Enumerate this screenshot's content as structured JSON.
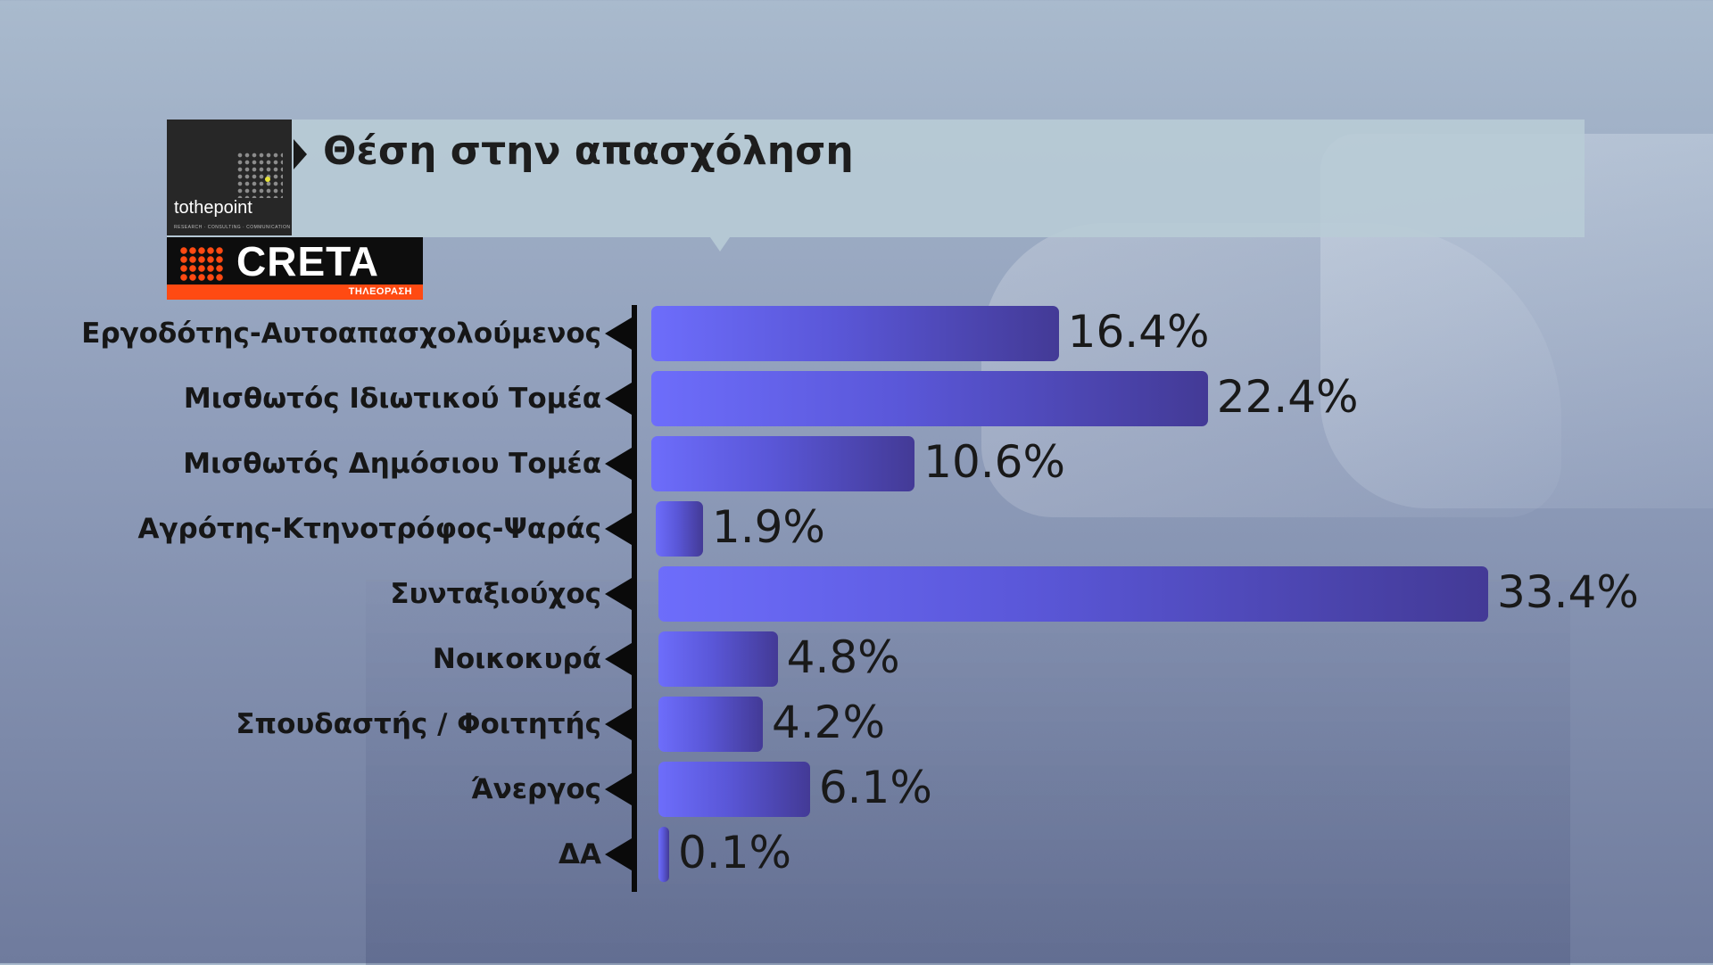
{
  "header": {
    "title": "Θέση στην απασχόληση"
  },
  "logos": {
    "tothepoint": {
      "name": "tothepoint",
      "tagline": "RESEARCH · CONSULTING · COMMUNICATION"
    },
    "creta": {
      "name": "CRETA",
      "subtitle": "ΤΗΛΕΟΡΑΣΗ"
    }
  },
  "colors": {
    "bar_start": "#6d6dfb",
    "bar_end": "#433a96",
    "header_bg": "#b8ccd6",
    "creta_orange": "#ff4a12"
  },
  "chart_data": {
    "type": "bar",
    "orientation": "horizontal",
    "title": "Θέση στην απασχόληση",
    "unit": "%",
    "categories": [
      "Εργοδότης-Αυτοαπασχολούμενος",
      "Μισθωτός Ιδιωτικού Τομέα",
      "Μισθωτός Δημόσιου Τομέα",
      "Αγρότης-Κτηνοτρόφος-Ψαράς",
      "Συνταξιούχος",
      "Νοικοκυρά",
      "Σπουδαστής / Φοιτητής",
      "Άνεργος",
      "ΔΑ"
    ],
    "values": [
      16.4,
      22.4,
      10.6,
      1.9,
      33.4,
      4.8,
      4.2,
      6.1,
      0.1
    ],
    "value_labels": [
      "16.4%",
      "22.4%",
      "10.6%",
      "1.9%",
      "33.4%",
      "4.8%",
      "4.2%",
      "6.1%",
      "0.1%"
    ],
    "grid": false,
    "legend": "none"
  }
}
